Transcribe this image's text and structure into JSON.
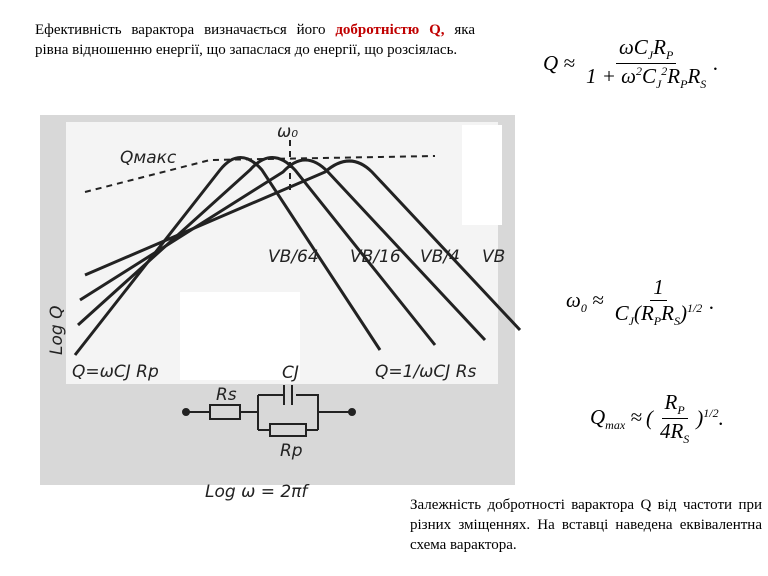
{
  "paragraph": {
    "lead": "Ефективність варактора визначається його",
    "highlight": "добротністю Q,",
    "rest": "яка рівна відношенню енергії, що запаслася до енергії, що розсіялась."
  },
  "formulas": [
    {
      "lhs": [
        {
          "t": "Q ≈"
        }
      ],
      "num": [
        {
          "t": "ωC",
          "sub": "J"
        },
        {
          "t": "R",
          "sub": "P"
        }
      ],
      "den": [
        {
          "t": "1 + ω",
          "sup": "2"
        },
        {
          "t": "C",
          "sub": "J",
          "sup": "2"
        },
        {
          "t": "R",
          "sub": "P"
        },
        {
          "t": "R",
          "sub": "S"
        }
      ],
      "open": [],
      "close": [
        {
          "t": "."
        }
      ]
    },
    {
      "lhs": [
        {
          "t": "ω",
          "sub": "0"
        },
        {
          "t": " ≈"
        }
      ],
      "num": [
        {
          "t": "1"
        }
      ],
      "den": [
        {
          "t": "C",
          "sub": "J"
        },
        {
          "t": "(R",
          "sub": "P"
        },
        {
          "t": "R",
          "sub": "S"
        },
        {
          "t": ")",
          "sup": "1/2"
        }
      ],
      "open": [],
      "close": [
        {
          "t": "."
        }
      ]
    },
    {
      "lhs": [
        {
          "t": "Q",
          "sub": "max"
        },
        {
          "t": " ≈"
        }
      ],
      "num": [
        {
          "t": "R",
          "sub": "P"
        }
      ],
      "den": [
        {
          "t": "4R",
          "sub": "S"
        }
      ],
      "open": [
        {
          "t": "("
        }
      ],
      "close": [
        {
          "t": ")",
          "sup": "1/2"
        },
        {
          "t": "."
        }
      ]
    }
  ],
  "diagram": {
    "omega0": "ω₀",
    "qmax": "Qмакс",
    "curves": [
      "VB/64",
      "VB/16",
      "VB/4",
      "VB"
    ],
    "y_axis": "Log Q",
    "left_line": "Q=ωCJ Rp",
    "right_line": "Q=1/ωCJ Rs",
    "rs": "Rs",
    "cj": "CJ",
    "rp": "Rp",
    "x_axis": "Log ω = 2πf"
  },
  "caption": "Залежність добротності варактора Q від частоти при різних зміщеннях. На вставці наведена еквівалентна схема варактора."
}
